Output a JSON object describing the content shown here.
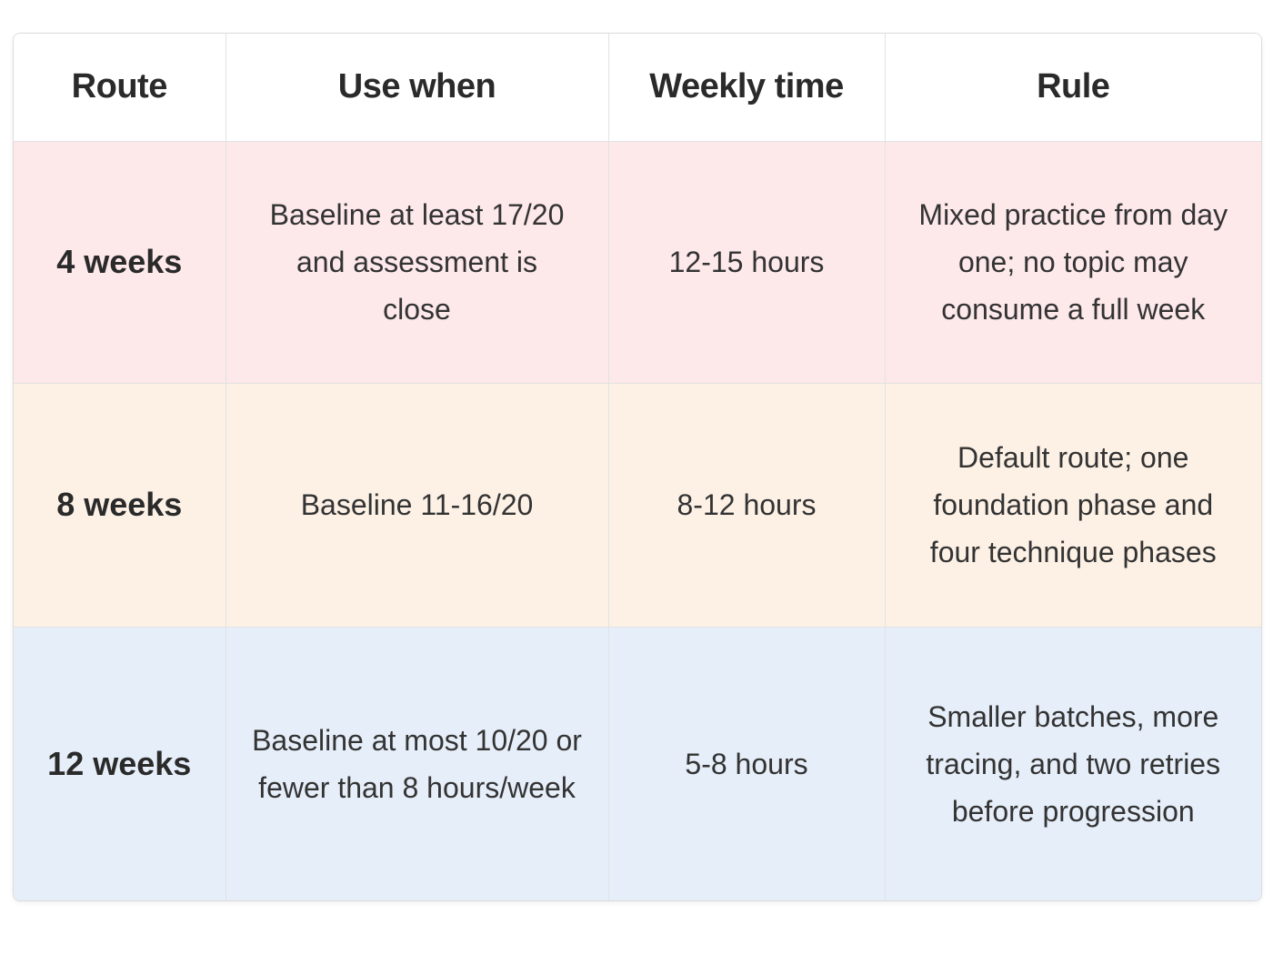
{
  "table": {
    "headers": [
      "Route",
      "Use when",
      "Weekly time",
      "Rule"
    ],
    "rows": [
      {
        "route": "4 weeks",
        "use_when": "Baseline at least 17/20 and assessment is close",
        "weekly_time": "12-15 hours",
        "rule": "Mixed practice from day one; no topic may consume a full week",
        "color": "#fde8ea"
      },
      {
        "route": "8 weeks",
        "use_when": "Baseline 11-16/20",
        "weekly_time": "8-12 hours",
        "rule": "Default route; one foundation phase and four technique phases",
        "color": "#fdf1e6"
      },
      {
        "route": "12 weeks",
        "use_when": "Baseline at most 10/20 or fewer than 8 hours/week",
        "weekly_time": "5-8 hours",
        "rule": "Smaller batches, more tracing, and two retries before progression",
        "color": "#e6eef9"
      }
    ]
  }
}
